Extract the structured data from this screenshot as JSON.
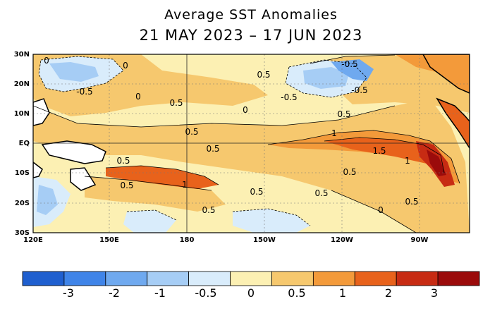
{
  "title_line1": "Average SST Anomalies",
  "title_line2": "21 MAY 2023 – 17 JUN 2023",
  "lat_labels": [
    "30N",
    "20N",
    "10N",
    "EQ",
    "10S",
    "20S",
    "30S"
  ],
  "lon_labels": [
    "120E",
    "150E",
    "180",
    "150W",
    "120W",
    "90W"
  ],
  "contour_labels": [
    "0",
    "-0.5",
    "0",
    "0.5",
    "0",
    "0.5",
    "-0.5",
    "-0.5",
    "-0.5",
    "0.5",
    "1",
    "1.5",
    "1",
    "0.5",
    "0.5",
    "0.5",
    "0.5",
    "0.5",
    "0.5",
    "1",
    "0.5",
    "0.5",
    "0",
    "0.5",
    "0"
  ],
  "colorbar": {
    "colors": [
      "#1f5fcf",
      "#3f84e8",
      "#6fa9ef",
      "#a6cdf5",
      "#d9ecfb",
      "#fcf0b3",
      "#f6c86e",
      "#f39a3a",
      "#e8621b",
      "#c72b13",
      "#9b0b0b"
    ],
    "labels": [
      "-3",
      "-2",
      "-1",
      "-0.5",
      "0",
      "0.5",
      "1",
      "2",
      "3"
    ]
  }
}
